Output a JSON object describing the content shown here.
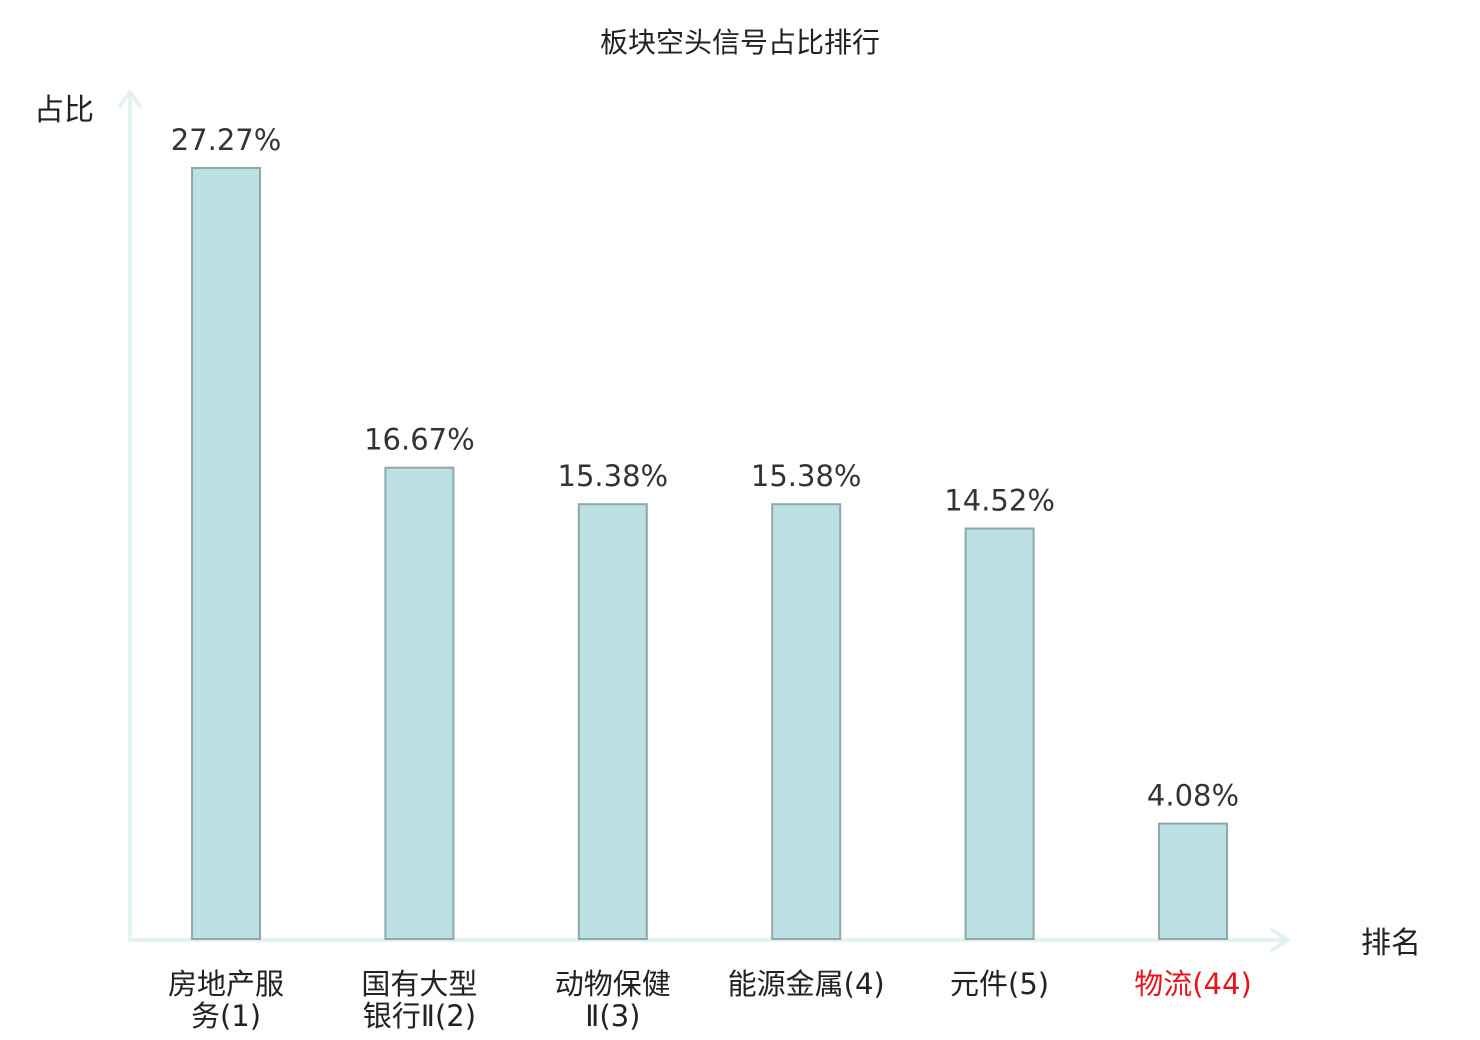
{
  "chart_data": {
    "type": "bar",
    "title": "板块空头信号占比排行",
    "ylabel": "占比",
    "xlabel": "排名",
    "categories": [
      [
        "房地产服",
        "务(1)"
      ],
      [
        "国有大型",
        "银行Ⅱ(2)"
      ],
      [
        "动物保健",
        "Ⅱ(3)"
      ],
      [
        "能源金属(4)"
      ],
      [
        "元件(5)"
      ],
      [
        "物流(44)"
      ]
    ],
    "values": [
      27.27,
      16.67,
      15.38,
      15.38,
      14.52,
      4.08
    ],
    "value_labels": [
      "27.27%",
      "16.67%",
      "15.38%",
      "15.38%",
      "14.52%",
      "4.08%"
    ],
    "highlight_index": 5,
    "ylim": [
      0,
      27.27
    ],
    "grid": false,
    "colors": {
      "bar_fill": "#bde0e3",
      "bar_stroke": "#8ea8aa",
      "axis": "#e2f3f0",
      "highlight": "#e8141b",
      "text": "#222222"
    }
  }
}
